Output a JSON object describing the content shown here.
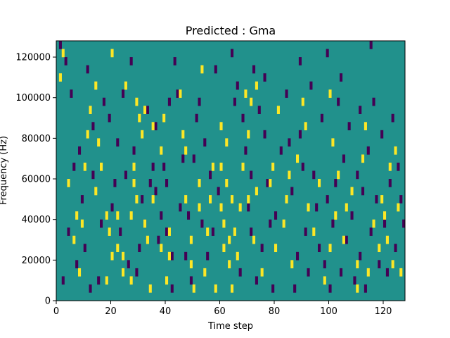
{
  "chart_data": {
    "type": "heatmap",
    "title": "Predicted : Gma",
    "xlabel": "Time step",
    "ylabel": "Frequency (Hz)",
    "xlim": [
      0,
      128
    ],
    "ylim": [
      0,
      128000
    ],
    "x_ticks": [
      0,
      20,
      40,
      60,
      80,
      100,
      120
    ],
    "x_tick_labels": [
      "0",
      "20",
      "40",
      "60",
      "80",
      "100",
      "120"
    ],
    "y_ticks": [
      0,
      20000,
      40000,
      60000,
      80000,
      100000,
      120000
    ],
    "y_tick_labels": [
      "0",
      "20000",
      "40000",
      "60000",
      "80000",
      "100000",
      "120000"
    ],
    "grid": false,
    "colormap": "viridis",
    "background_value": 0,
    "colors": {
      "background": "#21918c",
      "low": "#440154",
      "high": "#fde725"
    },
    "bin_height_hz": 4000,
    "high_cells": [
      [
        1,
        108000
      ],
      [
        6,
        28000
      ],
      [
        7,
        40000
      ],
      [
        8,
        12000
      ],
      [
        10,
        64000
      ],
      [
        11,
        80000
      ],
      [
        12,
        92000
      ],
      [
        14,
        104000
      ],
      [
        16,
        64000
      ],
      [
        20,
        120000
      ],
      [
        18,
        8000
      ],
      [
        18,
        40000
      ],
      [
        19,
        32000
      ],
      [
        20,
        20000
      ],
      [
        22,
        24000
      ],
      [
        22,
        40000
      ],
      [
        24,
        12000
      ],
      [
        24,
        20000
      ],
      [
        27,
        8000
      ],
      [
        27,
        40000
      ],
      [
        28,
        56000
      ],
      [
        28,
        64000
      ],
      [
        29,
        96000
      ],
      [
        29,
        48000
      ],
      [
        30,
        88000
      ],
      [
        31,
        80000
      ],
      [
        32,
        36000
      ],
      [
        33,
        28000
      ],
      [
        34,
        4000
      ],
      [
        35,
        84000
      ],
      [
        35,
        48000
      ],
      [
        38,
        72000
      ],
      [
        38,
        24000
      ],
      [
        40,
        8000
      ],
      [
        41,
        20000
      ],
      [
        41,
        32000
      ],
      [
        46,
        80000
      ],
      [
        47,
        72000
      ],
      [
        47,
        48000
      ],
      [
        49,
        28000
      ],
      [
        49,
        16000
      ],
      [
        50,
        4000
      ],
      [
        52,
        56000
      ],
      [
        52,
        44000
      ],
      [
        54,
        12000
      ],
      [
        55,
        32000
      ],
      [
        56,
        48000
      ],
      [
        57,
        64000
      ],
      [
        58,
        4000
      ],
      [
        60,
        84000
      ],
      [
        60,
        64000
      ],
      [
        60,
        44000
      ],
      [
        61,
        36000
      ],
      [
        61,
        24000
      ],
      [
        62,
        76000
      ],
      [
        62,
        56000
      ],
      [
        63,
        16000
      ],
      [
        63,
        28000
      ],
      [
        64,
        4000
      ],
      [
        64,
        48000
      ],
      [
        65,
        32000
      ],
      [
        66,
        20000
      ],
      [
        67,
        44000
      ],
      [
        68,
        64000
      ],
      [
        69,
        100000
      ],
      [
        70,
        48000
      ],
      [
        71,
        96000
      ],
      [
        72,
        28000
      ],
      [
        73,
        52000
      ],
      [
        75,
        12000
      ],
      [
        78,
        56000
      ],
      [
        79,
        64000
      ],
      [
        80,
        24000
      ],
      [
        81,
        92000
      ],
      [
        83,
        36000
      ],
      [
        84,
        48000
      ],
      [
        85,
        60000
      ],
      [
        86,
        16000
      ],
      [
        88,
        68000
      ],
      [
        91,
        84000
      ],
      [
        92,
        44000
      ],
      [
        94,
        32000
      ],
      [
        96,
        56000
      ],
      [
        98,
        8000
      ],
      [
        100,
        24000
      ],
      [
        101,
        76000
      ],
      [
        102,
        40000
      ],
      [
        103,
        60000
      ],
      [
        105,
        28000
      ],
      [
        106,
        44000
      ],
      [
        108,
        52000
      ],
      [
        110,
        16000
      ],
      [
        112,
        68000
      ],
      [
        114,
        12000
      ],
      [
        116,
        36000
      ],
      [
        118,
        24000
      ],
      [
        119,
        48000
      ],
      [
        120,
        40000
      ],
      [
        121,
        28000
      ],
      [
        122,
        64000
      ],
      [
        123,
        16000
      ],
      [
        124,
        72000
      ],
      [
        125,
        44000
      ],
      [
        126,
        12000
      ],
      [
        110,
        4000
      ],
      [
        113,
        84000
      ],
      [
        100,
        100000
      ],
      [
        90,
        96000
      ],
      [
        73,
        104000
      ],
      [
        70,
        80000
      ],
      [
        53,
        112000
      ],
      [
        45,
        100000
      ],
      [
        39,
        88000
      ],
      [
        32,
        92000
      ],
      [
        25,
        104000
      ],
      [
        15,
        76000
      ],
      [
        2,
        120000
      ],
      [
        4,
        56000
      ],
      [
        14,
        52000
      ],
      [
        9,
        36000
      ]
    ],
    "low_cells": [
      [
        1,
        124000
      ],
      [
        3,
        116000
      ],
      [
        5,
        100000
      ],
      [
        8,
        72000
      ],
      [
        9,
        48000
      ],
      [
        10,
        24000
      ],
      [
        12,
        4000
      ],
      [
        13,
        84000
      ],
      [
        17,
        96000
      ],
      [
        19,
        88000
      ],
      [
        21,
        56000
      ],
      [
        23,
        32000
      ],
      [
        24,
        100000
      ],
      [
        26,
        16000
      ],
      [
        28,
        72000
      ],
      [
        30,
        24000
      ],
      [
        31,
        48000
      ],
      [
        33,
        92000
      ],
      [
        35,
        64000
      ],
      [
        36,
        52000
      ],
      [
        37,
        28000
      ],
      [
        38,
        40000
      ],
      [
        39,
        64000
      ],
      [
        40,
        56000
      ],
      [
        40,
        32000
      ],
      [
        41,
        96000
      ],
      [
        42,
        20000
      ],
      [
        44,
        100000
      ],
      [
        46,
        68000
      ],
      [
        48,
        40000
      ],
      [
        49,
        8000
      ],
      [
        50,
        68000
      ],
      [
        51,
        88000
      ],
      [
        53,
        36000
      ],
      [
        54,
        76000
      ],
      [
        55,
        20000
      ],
      [
        56,
        60000
      ],
      [
        57,
        32000
      ],
      [
        59,
        52000
      ],
      [
        65,
        96000
      ],
      [
        66,
        104000
      ],
      [
        67,
        12000
      ],
      [
        68,
        88000
      ],
      [
        69,
        72000
      ],
      [
        70,
        44000
      ],
      [
        71,
        32000
      ],
      [
        71,
        60000
      ],
      [
        72,
        112000
      ],
      [
        73,
        8000
      ],
      [
        74,
        92000
      ],
      [
        75,
        24000
      ],
      [
        76,
        80000
      ],
      [
        77,
        56000
      ],
      [
        78,
        36000
      ],
      [
        79,
        4000
      ],
      [
        80,
        40000
      ],
      [
        82,
        72000
      ],
      [
        84,
        100000
      ],
      [
        86,
        52000
      ],
      [
        87,
        4000
      ],
      [
        88,
        20000
      ],
      [
        89,
        80000
      ],
      [
        90,
        64000
      ],
      [
        91,
        32000
      ],
      [
        92,
        12000
      ],
      [
        93,
        104000
      ],
      [
        94,
        60000
      ],
      [
        95,
        44000
      ],
      [
        96,
        24000
      ],
      [
        97,
        88000
      ],
      [
        98,
        16000
      ],
      [
        99,
        48000
      ],
      [
        100,
        4000
      ],
      [
        101,
        36000
      ],
      [
        102,
        56000
      ],
      [
        103,
        96000
      ],
      [
        104,
        12000
      ],
      [
        105,
        68000
      ],
      [
        106,
        28000
      ],
      [
        107,
        84000
      ],
      [
        108,
        40000
      ],
      [
        109,
        8000
      ],
      [
        110,
        60000
      ],
      [
        111,
        20000
      ],
      [
        112,
        52000
      ],
      [
        113,
        4000
      ],
      [
        114,
        72000
      ],
      [
        115,
        32000
      ],
      [
        116,
        96000
      ],
      [
        117,
        48000
      ],
      [
        118,
        16000
      ],
      [
        119,
        80000
      ],
      [
        120,
        36000
      ],
      [
        121,
        12000
      ],
      [
        122,
        56000
      ],
      [
        123,
        88000
      ],
      [
        124,
        24000
      ],
      [
        125,
        64000
      ],
      [
        126,
        48000
      ],
      [
        127,
        36000
      ],
      [
        2,
        8000
      ],
      [
        4,
        32000
      ],
      [
        6,
        64000
      ],
      [
        7,
        16000
      ],
      [
        11,
        112000
      ],
      [
        13,
        60000
      ],
      [
        15,
        8000
      ],
      [
        16,
        36000
      ],
      [
        20,
        44000
      ],
      [
        22,
        76000
      ],
      [
        25,
        60000
      ],
      [
        27,
        116000
      ],
      [
        29,
        12000
      ],
      [
        32,
        36000
      ],
      [
        34,
        56000
      ],
      [
        36,
        84000
      ],
      [
        42,
        4000
      ],
      [
        43,
        116000
      ],
      [
        45,
        44000
      ],
      [
        47,
        20000
      ],
      [
        52,
        96000
      ],
      [
        58,
        112000
      ],
      [
        64,
        120000
      ],
      [
        76,
        108000
      ],
      [
        85,
        76000
      ],
      [
        89,
        116000
      ],
      [
        99,
        120000
      ],
      [
        104,
        108000
      ],
      [
        111,
        92000
      ],
      [
        115,
        124000
      ]
    ]
  }
}
